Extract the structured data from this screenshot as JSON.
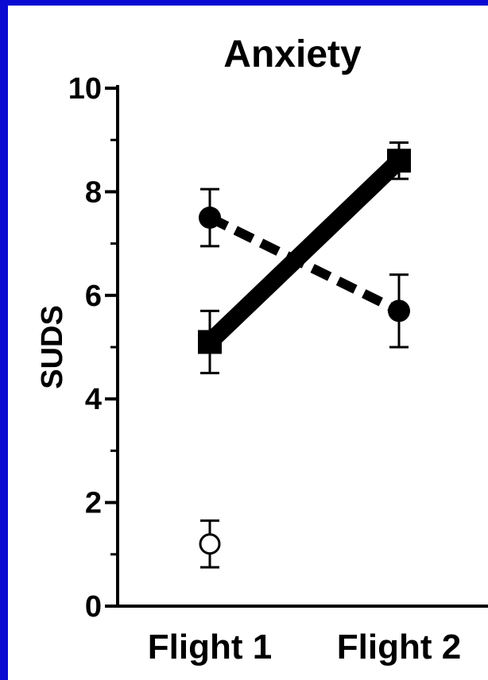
{
  "page": {
    "background": "#0a0ad2",
    "figure_background": "#ffffff"
  },
  "chart_data": {
    "type": "line",
    "title": "Anxiety",
    "xlabel": "",
    "ylabel": "SUDS",
    "categories": [
      "Flight 1",
      "Flight 2"
    ],
    "ylim": [
      0,
      10
    ],
    "yticks": [
      0,
      2,
      4,
      6,
      8,
      10
    ],
    "grid": false,
    "legend": "none",
    "series": [
      {
        "style": "solid",
        "marker": "filled-square",
        "values": [
          5.1,
          8.6
        ],
        "errors": [
          0.6,
          0.35
        ],
        "color": "#000000"
      },
      {
        "style": "dashed",
        "marker": "filled-circle",
        "values": [
          7.5,
          5.7
        ],
        "errors": [
          0.55,
          0.7
        ],
        "color": "#000000"
      },
      {
        "style": "none",
        "marker": "open-circle",
        "values": [
          1.2,
          null
        ],
        "errors": [
          0.45,
          null
        ],
        "color": "#000000"
      }
    ]
  }
}
